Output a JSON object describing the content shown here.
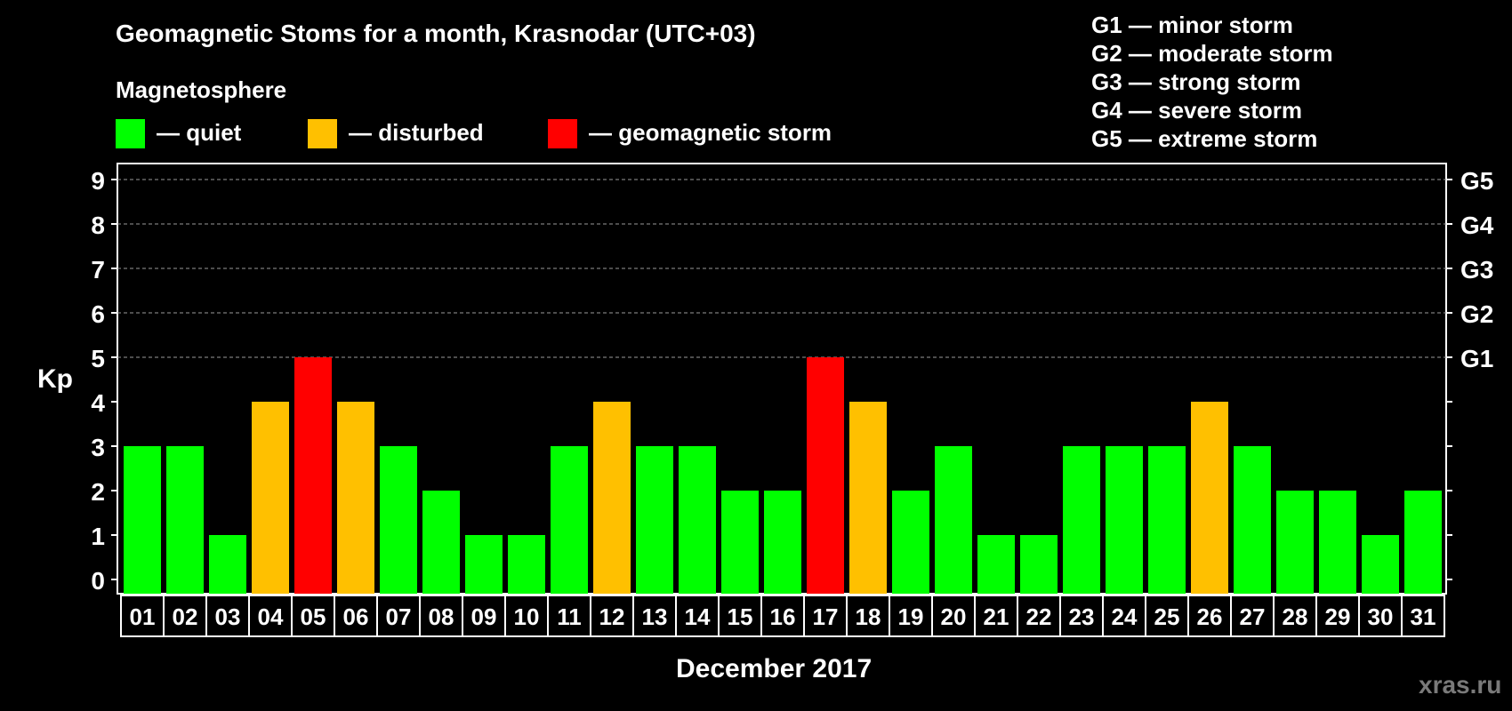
{
  "title": "Geomagnetic Stoms for a month, Krasnodar (UTC+03)",
  "magnetosphere_label": "Magnetosphere",
  "legend": [
    {
      "color": "#00ff00",
      "text": "— quiet"
    },
    {
      "color": "#ffc000",
      "text": "— disturbed"
    },
    {
      "color": "#ff0000",
      "text": "— geomagnetic storm"
    }
  ],
  "storm_scale": [
    "G1 — minor storm",
    "G2 — moderate storm",
    "G3 — strong storm",
    "G4 — severe storm",
    "G5 — extreme storm"
  ],
  "watermark": "xras.ru",
  "colors": {
    "quiet": "#00ff00",
    "disturbed": "#ffc000",
    "storm": "#ff0000"
  },
  "chart_data": {
    "type": "bar",
    "xlabel": "December 2017",
    "ylabel": "Kp",
    "ylim": [
      0,
      9
    ],
    "y_ticks": [
      0,
      1,
      2,
      3,
      4,
      5,
      6,
      7,
      8,
      9
    ],
    "y2_ticks": [
      {
        "value": 5,
        "label": "G1"
      },
      {
        "value": 6,
        "label": "G2"
      },
      {
        "value": 7,
        "label": "G3"
      },
      {
        "value": 8,
        "label": "G4"
      },
      {
        "value": 9,
        "label": "G5"
      }
    ],
    "grid": "dashed horizontal at 5–9",
    "categories": [
      "01",
      "02",
      "03",
      "04",
      "05",
      "06",
      "07",
      "08",
      "09",
      "10",
      "11",
      "12",
      "13",
      "14",
      "15",
      "16",
      "17",
      "18",
      "19",
      "20",
      "21",
      "22",
      "23",
      "24",
      "25",
      "26",
      "27",
      "28",
      "29",
      "30",
      "31"
    ],
    "values": [
      3,
      3,
      1,
      4,
      5,
      4,
      3,
      2,
      1,
      1,
      3,
      4,
      3,
      3,
      2,
      2,
      5,
      4,
      2,
      3,
      1,
      1,
      3,
      3,
      3,
      4,
      3,
      2,
      2,
      1,
      2
    ],
    "status": [
      "quiet",
      "quiet",
      "quiet",
      "disturbed",
      "storm",
      "disturbed",
      "quiet",
      "quiet",
      "quiet",
      "quiet",
      "quiet",
      "disturbed",
      "quiet",
      "quiet",
      "quiet",
      "quiet",
      "storm",
      "disturbed",
      "quiet",
      "quiet",
      "quiet",
      "quiet",
      "quiet",
      "quiet",
      "quiet",
      "disturbed",
      "quiet",
      "quiet",
      "quiet",
      "quiet",
      "quiet"
    ]
  }
}
